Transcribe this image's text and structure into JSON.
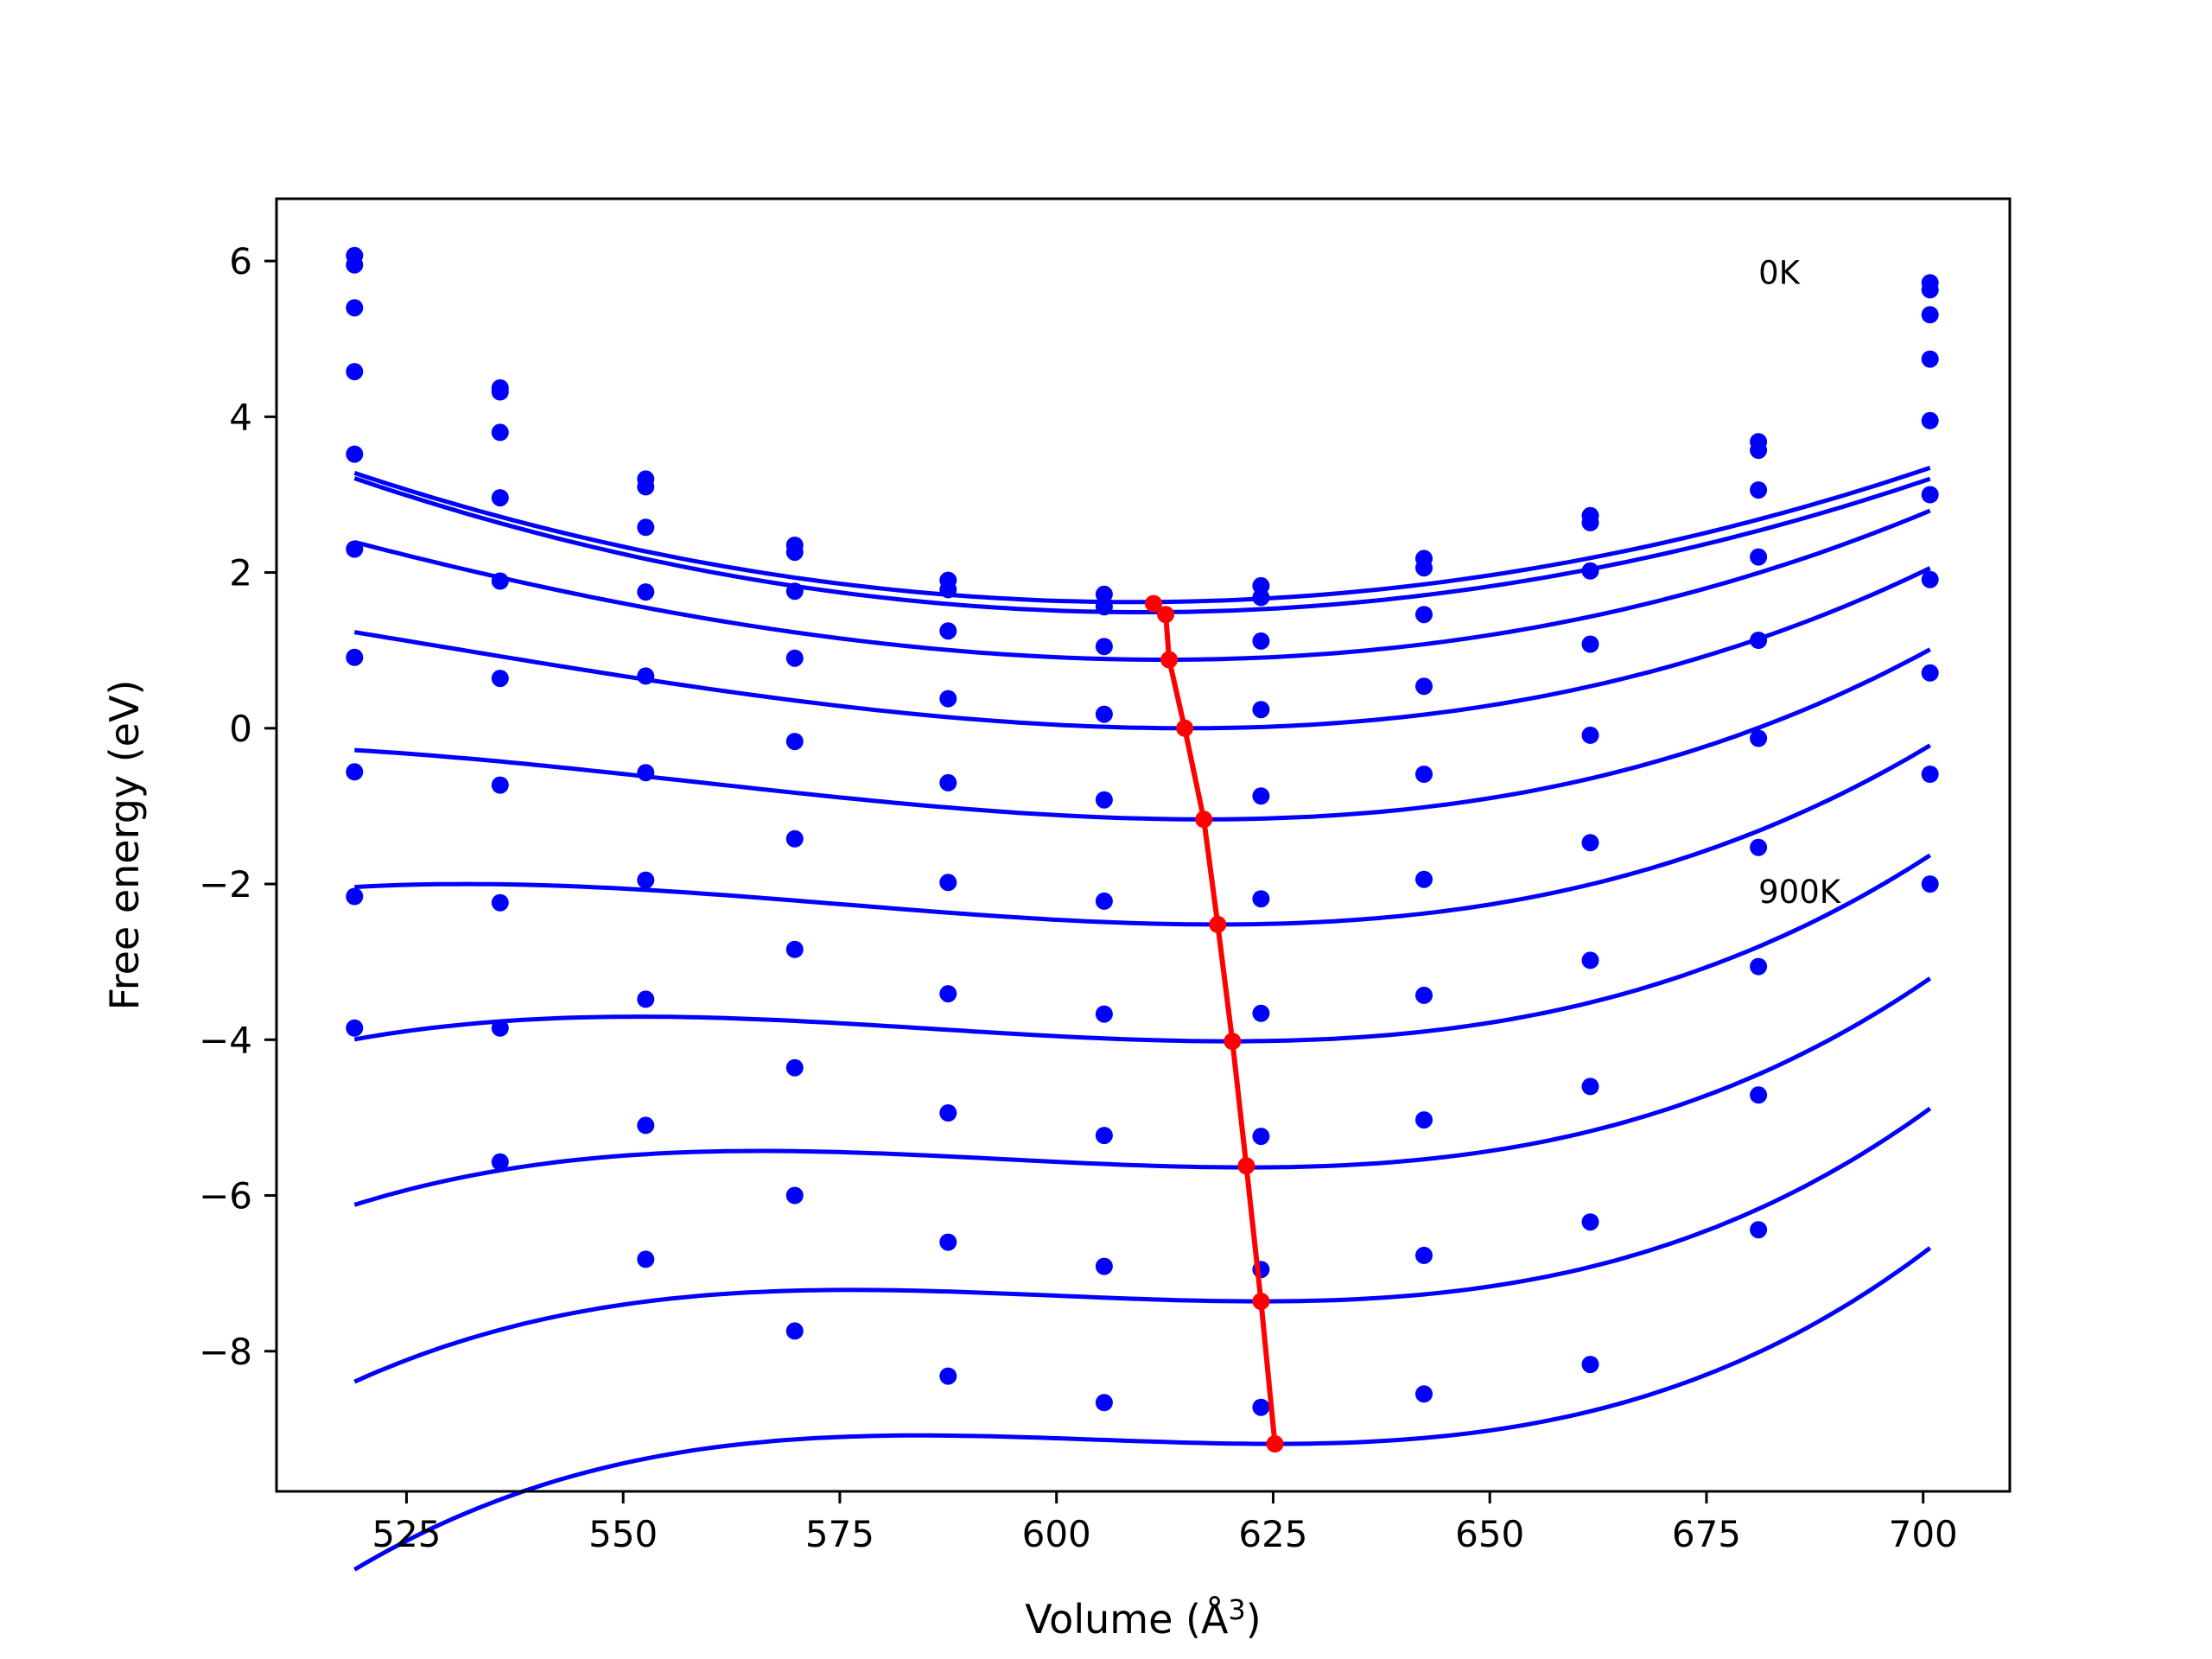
{
  "chart_data": {
    "type": "scatter",
    "xlabel_prefix": "Volume (",
    "xlabel_unit_base": "Å",
    "xlabel_unit_exp": "3",
    "xlabel_suffix": ")",
    "ylabel": "Free energy (eV)",
    "xlim": [
      510,
      710
    ],
    "ylim": [
      -9.8,
      6.8
    ],
    "xticks": [
      525,
      550,
      575,
      600,
      625,
      650,
      675,
      700
    ],
    "yticks": [
      6,
      4,
      2,
      0,
      -2,
      -4,
      -6,
      -8
    ],
    "ytick_labels": [
      "6",
      "4",
      "2",
      "0",
      "−2",
      "−4",
      "−6",
      "−8"
    ],
    "annotations": [
      {
        "text": "0K",
        "x": 681,
        "y": 5.85
      },
      {
        "text": "900K",
        "x": 681,
        "y": -2.1
      }
    ],
    "x": [
      519,
      535.8,
      552.6,
      569.8,
      587.5,
      605.5,
      623.6,
      642.4,
      661.6,
      681,
      700.8
    ],
    "series": [
      {
        "color": "#0000ff",
        "values": [
          6.07,
          4.37,
          3.2,
          2.35,
          1.9,
          1.72,
          1.83,
          2.18,
          2.73,
          3.68,
          5.72
        ],
        "fit": {
          "v0": 609,
          "e0": 1.62,
          "a": 0.0002047,
          "b": 0.0
        }
      },
      {
        "color": "#0000ff",
        "values": [
          5.95,
          4.32,
          3.1,
          2.26,
          1.78,
          1.56,
          1.68,
          2.06,
          2.64,
          3.57,
          5.63
        ],
        "fit": {
          "v0": 610,
          "e0": 1.49,
          "a": 0.0002078,
          "b": 0.0
        }
      },
      {
        "color": "#0000ff",
        "values": [
          5.4,
          3.8,
          2.58,
          1.76,
          1.25,
          1.05,
          1.12,
          1.46,
          2.02,
          3.06,
          5.31
        ],
        "fit": {
          "v0": 612.5,
          "e0": 0.88,
          "a": 0.0002102,
          "b": 4e-07
        }
      },
      {
        "color": "#0000ff",
        "values": [
          4.58,
          2.96,
          1.75,
          0.9,
          0.38,
          0.18,
          0.24,
          0.54,
          1.08,
          2.2,
          4.74
        ],
        "fit": {
          "v0": 615,
          "e0": 0.0,
          "a": 0.0002107,
          "b": 8e-07
        }
      },
      {
        "color": "#0000ff",
        "values": [
          3.52,
          1.89,
          0.67,
          -0.17,
          -0.7,
          -0.92,
          -0.87,
          -0.59,
          -0.09,
          1.13,
          3.95
        ],
        "fit": {
          "v0": 617,
          "e0": -1.17,
          "a": 0.0002102,
          "b": 1.2e-06
        }
      },
      {
        "color": "#0000ff",
        "values": [
          2.3,
          0.64,
          -0.57,
          -1.42,
          -1.98,
          -2.22,
          -2.19,
          -1.94,
          -1.47,
          -0.13,
          3.0
        ],
        "fit": {
          "v0": 618.5,
          "e0": -2.52,
          "a": 0.0002078,
          "b": 1.6e-06
        }
      },
      {
        "color": "#0000ff",
        "values": [
          0.91,
          -0.73,
          -1.95,
          -2.84,
          -3.41,
          -3.67,
          -3.66,
          -3.43,
          -2.98,
          -1.53,
          1.91
        ],
        "fit": {
          "v0": 620,
          "e0": -4.02,
          "a": 0.0002044,
          "b": 2e-06
        }
      },
      {
        "color": "#0000ff",
        "values": [
          -0.56,
          -2.24,
          -3.48,
          -4.36,
          -4.94,
          -5.23,
          -5.24,
          -5.03,
          -4.6,
          -3.06,
          0.71
        ],
        "fit": {
          "v0": 622,
          "e0": -5.64,
          "a": 0.0002019,
          "b": 2.4e-06
        }
      },
      {
        "color": "#0000ff",
        "values": [
          -2.16,
          -3.85,
          -5.1,
          -6.0,
          -6.6,
          -6.91,
          -6.95,
          -6.77,
          -6.34,
          -4.71,
          -0.59
        ],
        "fit": {
          "v0": 623.5,
          "e0": -7.36,
          "a": 0.0001981,
          "b": 2.8e-06
        }
      },
      {
        "color": "#0000ff",
        "values": [
          -3.85,
          -5.57,
          -6.82,
          -7.74,
          -8.32,
          -8.66,
          -8.72,
          -8.55,
          -8.17,
          -6.44,
          -2.0
        ],
        "fit": {
          "v0": 625,
          "e0": -9.19,
          "a": 0.0001955,
          "b": 3.2e-06
        }
      }
    ],
    "minima_path": {
      "color": "#ff0000",
      "x": [
        611.2,
        612.6,
        613.0,
        614.8,
        617.0,
        618.6,
        620.3,
        621.9,
        623.6,
        625.2
      ],
      "y": [
        1.6,
        1.46,
        0.88,
        0.0,
        -1.17,
        -2.52,
        -4.02,
        -5.62,
        -7.36,
        -9.19
      ]
    }
  }
}
